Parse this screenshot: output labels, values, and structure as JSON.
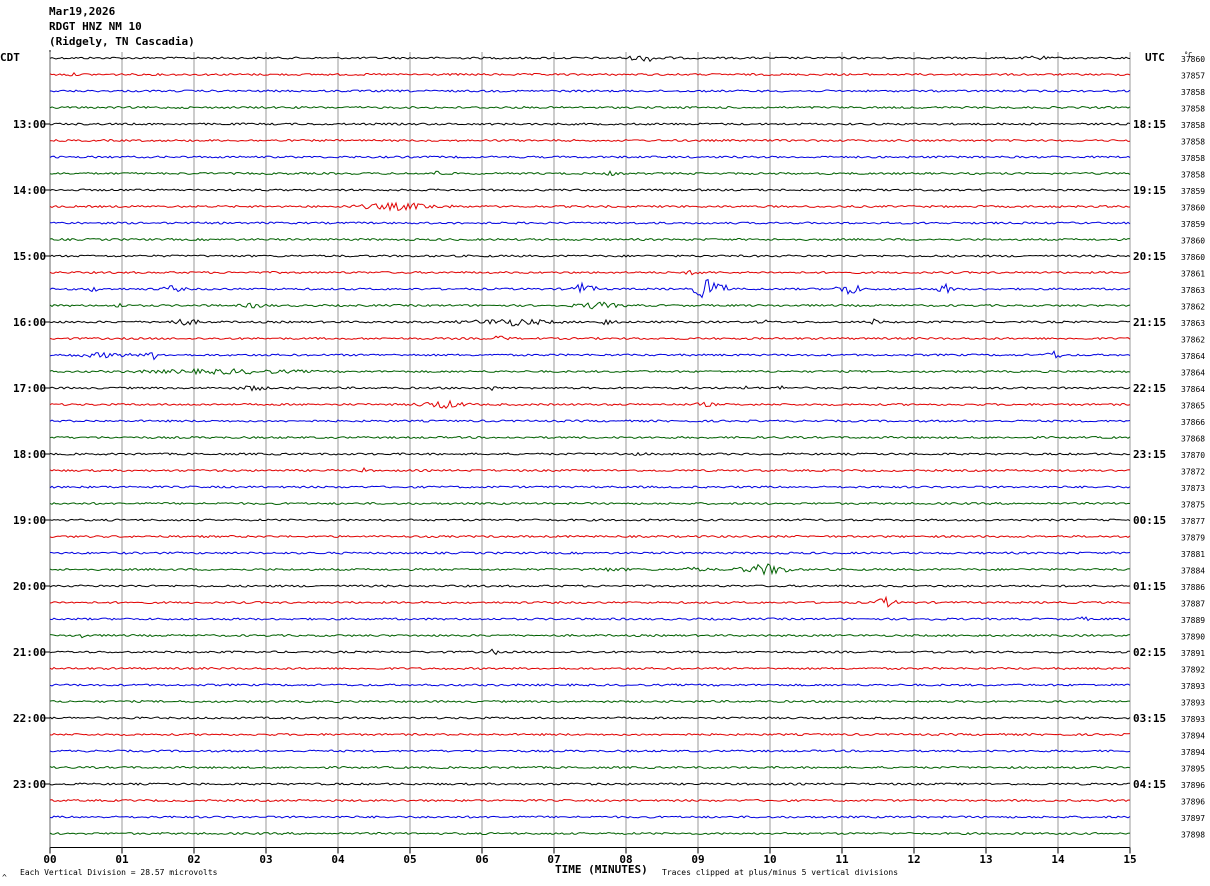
{
  "header": {
    "date": "Mar19,2026",
    "station": "RDGT HNZ NM 10",
    "location": "(Ridgely, TN Cascadia)"
  },
  "footer": {
    "scale_note": "Each Vertical Division =   28.57 microvolts",
    "clip_note": "Traces clipped at plus/minus 5 vertical divisions",
    "marker": "^"
  },
  "colors": {
    "cycle": [
      "#000000",
      "#e00000",
      "#0000e0",
      "#006000"
    ],
    "grid": "#808080"
  },
  "chart_data": {
    "type": "line",
    "title": "",
    "xlabel": "TIME (MINUTES)",
    "ylabel": "",
    "left_axis_label": "CDT",
    "right_axis_label": "UTC",
    "temp_label": "°C",
    "xlim": [
      0,
      15
    ],
    "x_ticks": [
      "00",
      "01",
      "02",
      "03",
      "04",
      "05",
      "06",
      "07",
      "08",
      "09",
      "10",
      "11",
      "12",
      "13",
      "14",
      "15"
    ],
    "left_time_labels": [
      "13:00",
      "14:00",
      "15:00",
      "16:00",
      "17:00",
      "18:00",
      "19:00",
      "20:00",
      "21:00",
      "22:00",
      "23:00"
    ],
    "right_time_labels": [
      "18:15",
      "19:15",
      "20:15",
      "21:15",
      "22:15",
      "23:15",
      "00:15",
      "01:15",
      "02:15",
      "03:15",
      "04:15"
    ],
    "trace_labels": [
      "37860",
      "37857",
      "37858",
      "37858",
      "37858",
      "37858",
      "37858",
      "37858",
      "37859",
      "37860",
      "37859",
      "37860",
      "37860",
      "37861",
      "37863",
      "37862",
      "37863",
      "37862",
      "37864",
      "37864",
      "37864",
      "37865",
      "37866",
      "37868",
      "37870",
      "37872",
      "37873",
      "37875",
      "37877",
      "37879",
      "37881",
      "37884",
      "37886",
      "37887",
      "37889",
      "37890",
      "37891",
      "37892",
      "37893",
      "37893",
      "37893",
      "37894",
      "37894",
      "37895",
      "37896",
      "37896",
      "37897",
      "37898"
    ],
    "events": [
      {
        "trace": 0,
        "start": 7.9,
        "end": 8.7,
        "amp": 0.45
      },
      {
        "trace": 0,
        "start": 13.5,
        "end": 13.9,
        "amp": 0.4
      },
      {
        "trace": 1,
        "start": 0.2,
        "end": 0.4,
        "amp": 0.3
      },
      {
        "trace": 7,
        "start": 5.3,
        "end": 5.5,
        "amp": 0.5
      },
      {
        "trace": 7,
        "start": 7.7,
        "end": 7.9,
        "amp": 0.4
      },
      {
        "trace": 9,
        "start": 4.0,
        "end": 5.7,
        "amp": 0.5
      },
      {
        "trace": 13,
        "start": 8.6,
        "end": 9.3,
        "amp": 0.3
      },
      {
        "trace": 14,
        "start": 0.4,
        "end": 0.8,
        "amp": 0.35
      },
      {
        "trace": 14,
        "start": 1.5,
        "end": 1.9,
        "amp": 0.5
      },
      {
        "trace": 14,
        "start": 7.2,
        "end": 7.6,
        "amp": 0.8
      },
      {
        "trace": 14,
        "start": 8.9,
        "end": 9.4,
        "amp": 1.5
      },
      {
        "trace": 14,
        "start": 10.9,
        "end": 11.3,
        "amp": 0.9
      },
      {
        "trace": 14,
        "start": 12.3,
        "end": 12.6,
        "amp": 0.7
      },
      {
        "trace": 15,
        "start": 0.8,
        "end": 1.1,
        "amp": 0.35
      },
      {
        "trace": 15,
        "start": 2.6,
        "end": 3.1,
        "amp": 0.4
      },
      {
        "trace": 15,
        "start": 7.2,
        "end": 8.0,
        "amp": 0.5
      },
      {
        "trace": 16,
        "start": 1.5,
        "end": 2.2,
        "amp": 0.45
      },
      {
        "trace": 16,
        "start": 5.6,
        "end": 7.2,
        "amp": 0.5
      },
      {
        "trace": 16,
        "start": 7.6,
        "end": 7.9,
        "amp": 0.5
      },
      {
        "trace": 16,
        "start": 9.8,
        "end": 10.0,
        "amp": 0.4
      },
      {
        "trace": 16,
        "start": 11.3,
        "end": 11.6,
        "amp": 0.4
      },
      {
        "trace": 17,
        "start": 6.0,
        "end": 6.5,
        "amp": 0.35
      },
      {
        "trace": 18,
        "start": 0.0,
        "end": 1.5,
        "amp": 0.35
      },
      {
        "trace": 18,
        "start": 1.3,
        "end": 1.6,
        "amp": 0.6
      },
      {
        "trace": 18,
        "start": 13.8,
        "end": 14.1,
        "amp": 0.6
      },
      {
        "trace": 19,
        "start": 0.5,
        "end": 4.3,
        "amp": 0.35
      },
      {
        "trace": 20,
        "start": 2.5,
        "end": 3.1,
        "amp": 0.4
      },
      {
        "trace": 20,
        "start": 6.1,
        "end": 6.2,
        "amp": 0.5
      },
      {
        "trace": 20,
        "start": 9.6,
        "end": 9.7,
        "amp": 0.4
      },
      {
        "trace": 20,
        "start": 10.1,
        "end": 10.2,
        "amp": 0.5
      },
      {
        "trace": 21,
        "start": 5.0,
        "end": 5.9,
        "amp": 0.55
      },
      {
        "trace": 21,
        "start": 8.8,
        "end": 9.4,
        "amp": 0.3
      },
      {
        "trace": 24,
        "start": 7.0,
        "end": 9.0,
        "amp": 0.2
      },
      {
        "trace": 25,
        "start": 4.3,
        "end": 4.4,
        "amp": 0.4
      },
      {
        "trace": 31,
        "start": 7.0,
        "end": 8.5,
        "amp": 0.25
      },
      {
        "trace": 31,
        "start": 8.5,
        "end": 9.4,
        "amp": 0.3
      },
      {
        "trace": 31,
        "start": 9.5,
        "end": 10.4,
        "amp": 0.75
      },
      {
        "trace": 33,
        "start": 11.4,
        "end": 11.8,
        "amp": 0.7
      },
      {
        "trace": 34,
        "start": 12.2,
        "end": 12.4,
        "amp": 0.4
      },
      {
        "trace": 34,
        "start": 14.2,
        "end": 14.5,
        "amp": 0.3
      },
      {
        "trace": 35,
        "start": 0.4,
        "end": 0.5,
        "amp": 0.6
      },
      {
        "trace": 36,
        "start": 6.1,
        "end": 6.2,
        "amp": 0.9
      },
      {
        "trace": 36,
        "start": 7.0,
        "end": 8.0,
        "amp": 0.15
      }
    ]
  }
}
